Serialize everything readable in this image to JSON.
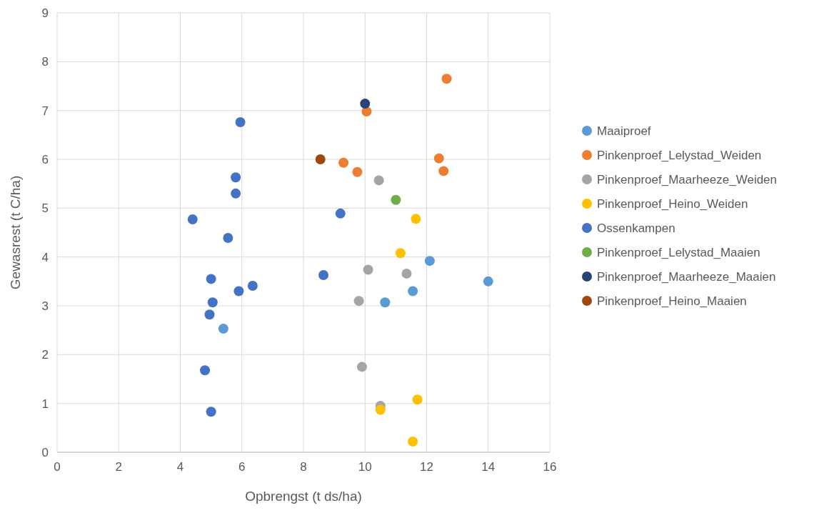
{
  "chart_data": {
    "type": "scatter",
    "xlabel": "Opbrengst (t ds/ha)",
    "ylabel": "Gewasrest (t C/ha)",
    "xlim": [
      0,
      16
    ],
    "xticks": [
      0,
      2,
      4,
      6,
      8,
      10,
      12,
      14,
      16
    ],
    "ylim": [
      0,
      9
    ],
    "yticks": [
      0,
      1,
      2,
      3,
      4,
      5,
      6,
      7,
      8,
      9
    ],
    "grid": true,
    "legend": "right",
    "marker": "circle",
    "series": [
      {
        "name": "Maaiproef",
        "color": "#5b9bd5",
        "x": [
          5.4,
          10.65,
          11.55,
          12.1,
          14.0
        ],
        "values": [
          2.53,
          3.07,
          3.3,
          3.92,
          3.5
        ]
      },
      {
        "name": "Pinkenproef_Lelystad_Weiden",
        "color": "#ed7d31",
        "x": [
          10.05,
          12.65,
          9.3,
          9.75,
          12.4,
          12.55
        ],
        "values": [
          6.98,
          7.65,
          5.93,
          5.74,
          6.02,
          5.76
        ]
      },
      {
        "name": "Pinkenproef_Maarheeze_Weiden",
        "color": "#a5a5a5",
        "x": [
          10.45,
          10.1,
          11.35,
          9.8,
          9.9,
          10.5
        ],
        "values": [
          5.57,
          3.74,
          3.66,
          3.1,
          1.75,
          0.95
        ]
      },
      {
        "name": "Pinkenproef_Heino_Weiden",
        "color": "#ffc000",
        "x": [
          11.65,
          11.15,
          11.7,
          10.5,
          11.55
        ],
        "values": [
          4.78,
          4.08,
          1.08,
          0.87,
          0.22
        ]
      },
      {
        "name": "Ossenkampen",
        "color": "#4472c4",
        "x": [
          5.95,
          5.8,
          5.8,
          4.4,
          5.55,
          9.2,
          5.0,
          8.65,
          6.35,
          5.9,
          5.05,
          4.95,
          4.8,
          5.0
        ],
        "values": [
          6.76,
          5.63,
          5.3,
          4.77,
          4.39,
          4.89,
          3.55,
          3.63,
          3.41,
          3.3,
          3.07,
          2.82,
          1.68,
          0.83
        ]
      },
      {
        "name": "Pinkenproef_Lelystad_Maaien",
        "color": "#70ad47",
        "x": [
          11.0
        ],
        "values": [
          5.17
        ]
      },
      {
        "name": "Pinkenproef_Maarheeze_Maaien",
        "color": "#264478",
        "x": [
          10.0
        ],
        "values": [
          7.14
        ]
      },
      {
        "name": "Pinkenproef_Heino_Maaien",
        "color": "#9e480e",
        "x": [
          8.55
        ],
        "values": [
          6.0
        ]
      }
    ]
  }
}
